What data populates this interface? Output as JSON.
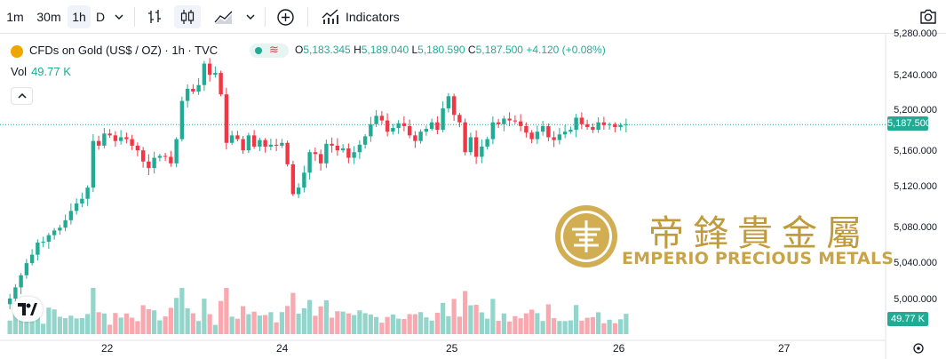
{
  "colors": {
    "up": "#22ab94",
    "down": "#f23645",
    "vol_up": "#93d5cb",
    "vol_down": "#f8a8ae",
    "gold": "#c9a446"
  },
  "toolbar": {
    "intervals": [
      "1m",
      "30m",
      "1h",
      "D"
    ],
    "active_interval": "1h",
    "indicators_label": "Indicators",
    "icons": [
      "chevron-down-icon",
      "bar-chart-icon",
      "candles-icon",
      "area-chart-icon",
      "chevron-down-icon",
      "add-circle-icon",
      "indicators-icon",
      "camera-icon"
    ]
  },
  "legend": {
    "symbol": "CFDs on Gold (US$ / OZ) · 1h · TVC",
    "o_label": "O",
    "o": "5,183.345",
    "h_label": "H",
    "h": "5,189.040",
    "l_label": "L",
    "l": "5,180.590",
    "c_label": "C",
    "c": "5,187.500",
    "change": "+4.120 (+0.08%)",
    "wave": "≋"
  },
  "volume": {
    "label": "Vol",
    "value": "49.77 K",
    "tag": "49.77 K"
  },
  "price_axis": {
    "labels": [
      "5,280.000",
      "5,240.000",
      "5,200.000",
      "5,160.000",
      "5,120.000",
      "5,080.000",
      "5,040.000",
      "5,000.000"
    ],
    "last_price": "5,187.500"
  },
  "time_axis": {
    "labels": [
      "22",
      "24",
      "25",
      "26",
      "27"
    ]
  },
  "watermark": {
    "chinese": "帝鋒貴金屬",
    "english": "EMPERIO PRECIOUS METALS"
  },
  "chart_data": {
    "type": "candlestick",
    "x": "hourly bars",
    "ylim": [
      4980,
      5285
    ],
    "last_price": 5187.5,
    "closes": [
      5001,
      5013,
      5026,
      5039,
      5048,
      5061,
      5062,
      5069,
      5074,
      5077,
      5085,
      5095,
      5103,
      5108,
      5120,
      5170,
      5165,
      5178,
      5176,
      5170,
      5174,
      5172,
      5165,
      5160,
      5148,
      5141,
      5152,
      5154,
      5153,
      5146,
      5172,
      5213,
      5226,
      5223,
      5230,
      5253,
      5241,
      5243,
      5220,
      5168,
      5176,
      5172,
      5160,
      5176,
      5164,
      5171,
      5164,
      5166,
      5165,
      5168,
      5145,
      5113,
      5120,
      5136,
      5158,
      5156,
      5146,
      5167,
      5165,
      5160,
      5162,
      5152,
      5158,
      5166,
      5175,
      5188,
      5197,
      5192,
      5180,
      5184,
      5189,
      5186,
      5176,
      5170,
      5180,
      5183,
      5190,
      5182,
      5205,
      5218,
      5198,
      5190,
      5158,
      5174,
      5153,
      5164,
      5172,
      5190,
      5188,
      5194,
      5192,
      5191,
      5186,
      5179,
      5172,
      5180,
      5186,
      5174,
      5171,
      5177,
      5180,
      5182,
      5195,
      5188,
      5185,
      5182,
      5190,
      5187,
      5188,
      5185,
      5187,
      5188
    ],
    "volume_note": "volume bars shown in lower pane"
  }
}
